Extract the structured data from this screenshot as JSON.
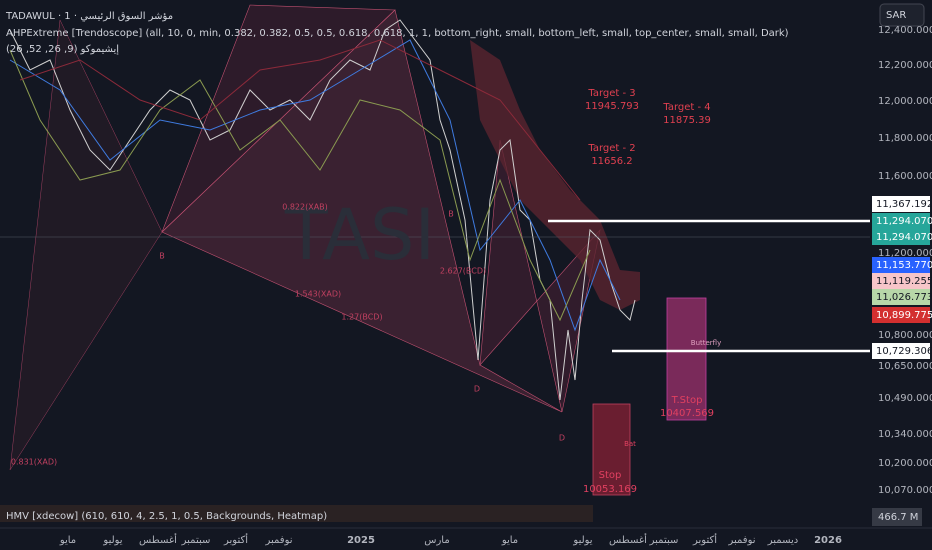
{
  "header": {
    "symbol": "TADAWUL · 1 · مؤشر السوق الرئيسي",
    "indicator_1": "AHPExtreme [Trendoscope] (all, 10, 0, min, 0.382, 0.382, 0.5, 0.5, 0.618, 0.618, 1, 1, bottom_right, small, bottom_left, small, top_center, small, small, Dark)",
    "indicator_2": "إيشيموكو (9, 26, 52, 26)"
  },
  "currency_button": "SAR",
  "watermark": "TASI",
  "price_axis": [
    "12,400.000",
    "12,200.000",
    "12,000.000",
    "11,800.000",
    "11,600.000",
    "11,200.000",
    "10,800.000",
    "10,650.000",
    "10,490.000",
    "10,340.000",
    "10,200.000",
    "10,070.000"
  ],
  "price_tags": [
    "11,367.192",
    "11,294.070",
    "11,294.070",
    "11,153.770",
    "11,119.255",
    "11,026.773",
    "10,899.775",
    "10,729.306"
  ],
  "volume_value": "466.7 M",
  "time_axis": [
    "مايو",
    "يوليو",
    "أغسطس",
    "سبتمبر",
    "أكتوبر",
    "نوفمبر",
    "2025",
    "مارس",
    "مايو",
    "يوليو",
    "أغسطس",
    "سبتمبر",
    "أكتوبر",
    "نوفمبر",
    "ديسمبر",
    "2026"
  ],
  "annotations": [
    "Target - 3",
    "11945.793",
    "Target - 4",
    "11875.39",
    "Target - 2",
    "11656.2",
    "T.Stop",
    "10407.569",
    "Stop",
    "10053.169",
    "Butterfly",
    "Bat",
    "0.822(XAB)",
    "2.627(BCD)",
    "1.543(XAD)",
    "1.27(BCD)",
    "0.831(XAD)",
    "B",
    "B",
    "D",
    "D"
  ],
  "volume_indicator": "HMV [xdecow] (610, 610, 4, 2.5, 1, 0.5, Backgrounds, Heatmap)"
}
